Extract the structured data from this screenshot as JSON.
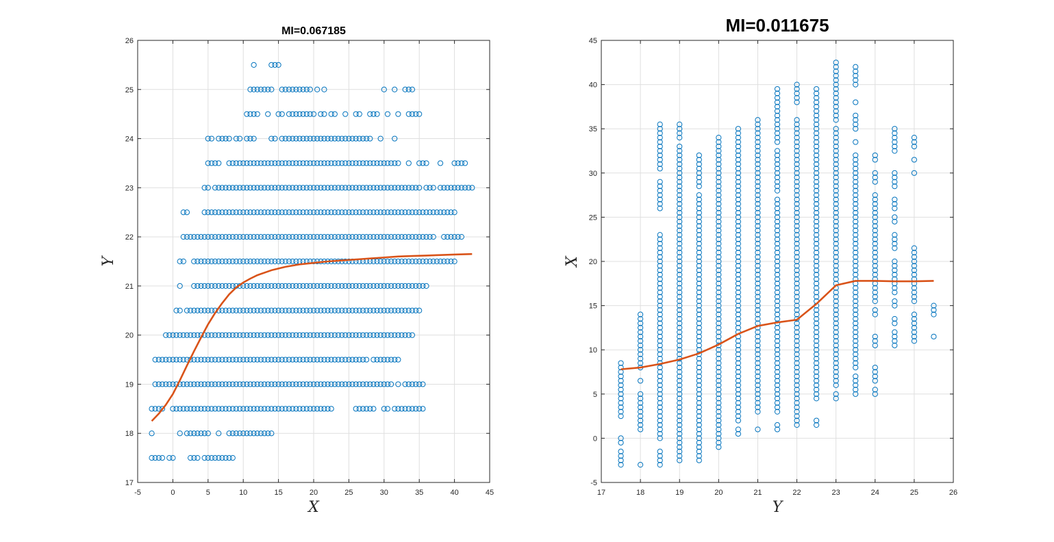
{
  "chart_data": [
    {
      "type": "scatter",
      "title": "MI=0.067185",
      "xlabel": "X",
      "ylabel": "Y",
      "xlim": [
        -5,
        45
      ],
      "ylim": [
        17,
        26
      ],
      "xticks": [
        -5,
        0,
        5,
        10,
        15,
        20,
        25,
        30,
        35,
        40,
        45
      ],
      "yticks": [
        17,
        18,
        19,
        20,
        21,
        22,
        23,
        24,
        25,
        26
      ],
      "grid": true,
      "marker_color": "#0072bd",
      "fit_color": "#d95319",
      "point_rows": [
        {
          "y": 17.5,
          "segments": [
            [
              -3,
              -1.5
            ],
            [
              -0.5,
              0
            ],
            [
              2.5,
              3.5
            ],
            [
              4.5,
              8.5
            ]
          ]
        },
        {
          "y": 18,
          "segments": [
            [
              -3,
              -3
            ],
            [
              1,
              1
            ],
            [
              2,
              5
            ],
            [
              6.5,
              6.5
            ],
            [
              8,
              14
            ]
          ]
        },
        {
          "y": 18.5,
          "segments": [
            [
              -3,
              -1.5
            ],
            [
              0,
              22.5
            ],
            [
              26,
              28.5
            ],
            [
              30,
              30.5
            ],
            [
              31.5,
              35.5
            ]
          ]
        },
        {
          "y": 19,
          "segments": [
            [
              -2.5,
              31
            ],
            [
              32,
              32
            ],
            [
              33,
              35.5
            ]
          ]
        },
        {
          "y": 19.5,
          "segments": [
            [
              -2.5,
              27.5
            ],
            [
              28.5,
              32
            ]
          ]
        },
        {
          "y": 20,
          "segments": [
            [
              -1,
              34
            ]
          ]
        },
        {
          "y": 20.5,
          "segments": [
            [
              0.5,
              1
            ],
            [
              2,
              35
            ]
          ]
        },
        {
          "y": 21,
          "segments": [
            [
              1,
              1
            ],
            [
              3,
              36
            ]
          ]
        },
        {
          "y": 21.5,
          "segments": [
            [
              1,
              1.5
            ],
            [
              3,
              40
            ]
          ]
        },
        {
          "y": 22,
          "segments": [
            [
              1.5,
              37
            ],
            [
              38.5,
              41
            ]
          ]
        },
        {
          "y": 22.5,
          "segments": [
            [
              1.5,
              2
            ],
            [
              4.5,
              39
            ],
            [
              39.5,
              40
            ]
          ]
        },
        {
          "y": 23,
          "segments": [
            [
              4.5,
              5
            ],
            [
              6,
              35
            ],
            [
              36,
              37
            ],
            [
              38,
              42.5
            ]
          ]
        },
        {
          "y": 23.5,
          "segments": [
            [
              5,
              6.5
            ],
            [
              8,
              32
            ],
            [
              33.5,
              33.5
            ],
            [
              35,
              36
            ],
            [
              38,
              38
            ],
            [
              40,
              41.5
            ]
          ]
        },
        {
          "y": 24,
          "segments": [
            [
              5,
              5.5
            ],
            [
              6.5,
              8
            ],
            [
              9,
              9.5
            ],
            [
              10.5,
              11.5
            ],
            [
              14,
              14.5
            ],
            [
              15.5,
              28
            ],
            [
              29.5,
              29.5
            ],
            [
              31.5,
              31.5
            ]
          ]
        },
        {
          "y": 24.5,
          "segments": [
            [
              10.5,
              12
            ],
            [
              13.5,
              13.5
            ],
            [
              15,
              15.5
            ],
            [
              16.5,
              20
            ],
            [
              21,
              21.5
            ],
            [
              22.5,
              23
            ],
            [
              24.5,
              24.5
            ],
            [
              26,
              26.5
            ],
            [
              28,
              29
            ],
            [
              30.5,
              30.5
            ],
            [
              32,
              32
            ],
            [
              33.5,
              35
            ]
          ]
        },
        {
          "y": 25,
          "segments": [
            [
              11,
              14
            ],
            [
              15.5,
              19.5
            ],
            [
              20.5,
              20.5
            ],
            [
              21.5,
              21.5
            ],
            [
              30,
              30
            ],
            [
              31.5,
              31.5
            ],
            [
              33,
              34
            ]
          ]
        },
        {
          "y": 25.5,
          "segments": [
            [
              11.5,
              11.5
            ],
            [
              14,
              15
            ]
          ]
        }
      ],
      "fit_x": [
        -3,
        -2,
        -1,
        0,
        1,
        2,
        3,
        4,
        5,
        6,
        7,
        8,
        9,
        10,
        11,
        12,
        14,
        16,
        18,
        20,
        22,
        24,
        26,
        28,
        30,
        32,
        34,
        36,
        38,
        40,
        42.5
      ],
      "fit_y": [
        18.25,
        18.4,
        18.58,
        18.8,
        19.08,
        19.38,
        19.67,
        19.95,
        20.22,
        20.45,
        20.65,
        20.83,
        20.97,
        21.07,
        21.15,
        21.22,
        21.32,
        21.39,
        21.44,
        21.47,
        21.5,
        21.52,
        21.54,
        21.56,
        21.58,
        21.6,
        21.61,
        21.62,
        21.63,
        21.64,
        21.65
      ]
    },
    {
      "type": "scatter",
      "title": "MI=0.011675",
      "xlabel": "Y",
      "ylabel": "X",
      "xlim": [
        17,
        26
      ],
      "ylim": [
        -5,
        45
      ],
      "xticks": [
        17,
        18,
        19,
        20,
        21,
        22,
        23,
        24,
        25,
        26
      ],
      "yticks": [
        -5,
        0,
        5,
        10,
        15,
        20,
        25,
        30,
        35,
        40,
        45
      ],
      "grid": true,
      "marker_color": "#0072bd",
      "fit_color": "#d95319",
      "point_columns": [
        {
          "x": 17.5,
          "segments": [
            [
              -3,
              -1.5
            ],
            [
              -0.5,
              0
            ],
            [
              2.5,
              8.5
            ]
          ]
        },
        {
          "x": 18,
          "segments": [
            [
              -3,
              -3
            ],
            [
              1,
              5
            ],
            [
              6.5,
              6.5
            ],
            [
              8,
              14
            ]
          ]
        },
        {
          "x": 18.5,
          "segments": [
            [
              -3,
              -1.5
            ],
            [
              0,
              23
            ],
            [
              26,
              29
            ],
            [
              30.5,
              35.5
            ]
          ]
        },
        {
          "x": 19,
          "segments": [
            [
              -2.5,
              33
            ],
            [
              34,
              35.5
            ]
          ]
        },
        {
          "x": 19.5,
          "segments": [
            [
              -2.5,
              27.5
            ],
            [
              28.5,
              32
            ]
          ]
        },
        {
          "x": 20,
          "segments": [
            [
              -1,
              34
            ]
          ]
        },
        {
          "x": 20.5,
          "segments": [
            [
              0.5,
              1
            ],
            [
              2,
              35
            ]
          ]
        },
        {
          "x": 21,
          "segments": [
            [
              1,
              1
            ],
            [
              3,
              36
            ]
          ]
        },
        {
          "x": 21.5,
          "segments": [
            [
              1,
              1.5
            ],
            [
              3,
              27
            ],
            [
              28,
              32.5
            ],
            [
              33.5,
              39.5
            ]
          ]
        },
        {
          "x": 22,
          "segments": [
            [
              1.5,
              36
            ],
            [
              38,
              40
            ]
          ]
        },
        {
          "x": 22.5,
          "segments": [
            [
              1.5,
              2
            ],
            [
              4.5,
              39.5
            ]
          ]
        },
        {
          "x": 23,
          "segments": [
            [
              4.5,
              5
            ],
            [
              6,
              35
            ],
            [
              36,
              37.5
            ],
            [
              38,
              42.5
            ]
          ]
        },
        {
          "x": 23.5,
          "segments": [
            [
              5,
              7
            ],
            [
              8,
              32
            ],
            [
              33.5,
              33.5
            ],
            [
              35,
              36.5
            ],
            [
              38,
              38
            ],
            [
              40,
              42
            ]
          ]
        },
        {
          "x": 24,
          "segments": [
            [
              5,
              5.5
            ],
            [
              6.5,
              8
            ],
            [
              10.5,
              11.5
            ],
            [
              14,
              14.5
            ],
            [
              15.5,
              27.5
            ],
            [
              29,
              30
            ],
            [
              31.5,
              32
            ]
          ]
        },
        {
          "x": 24.5,
          "segments": [
            [
              10.5,
              12
            ],
            [
              13,
              13.5
            ],
            [
              15,
              15.5
            ],
            [
              16.5,
              20
            ],
            [
              21.5,
              23
            ],
            [
              24.5,
              25
            ],
            [
              26,
              27
            ],
            [
              28.5,
              30
            ],
            [
              32.5,
              35
            ]
          ]
        },
        {
          "x": 25,
          "segments": [
            [
              11,
              14
            ],
            [
              15.5,
              21.5
            ],
            [
              30,
              30
            ],
            [
              31.5,
              31.5
            ],
            [
              33,
              34
            ]
          ]
        },
        {
          "x": 25.5,
          "segments": [
            [
              11.5,
              11.5
            ],
            [
              14,
              15
            ]
          ]
        }
      ],
      "fit_x": [
        17.5,
        18,
        18.5,
        19,
        19.5,
        20,
        20.5,
        21,
        21.5,
        22,
        22.5,
        23,
        23.5,
        24,
        24.5,
        25,
        25.5
      ],
      "fit_y": [
        7.8,
        8.0,
        8.4,
        8.9,
        9.6,
        10.6,
        11.8,
        12.7,
        13.1,
        13.4,
        15.2,
        17.3,
        17.8,
        17.8,
        17.75,
        17.75,
        17.8
      ]
    }
  ]
}
